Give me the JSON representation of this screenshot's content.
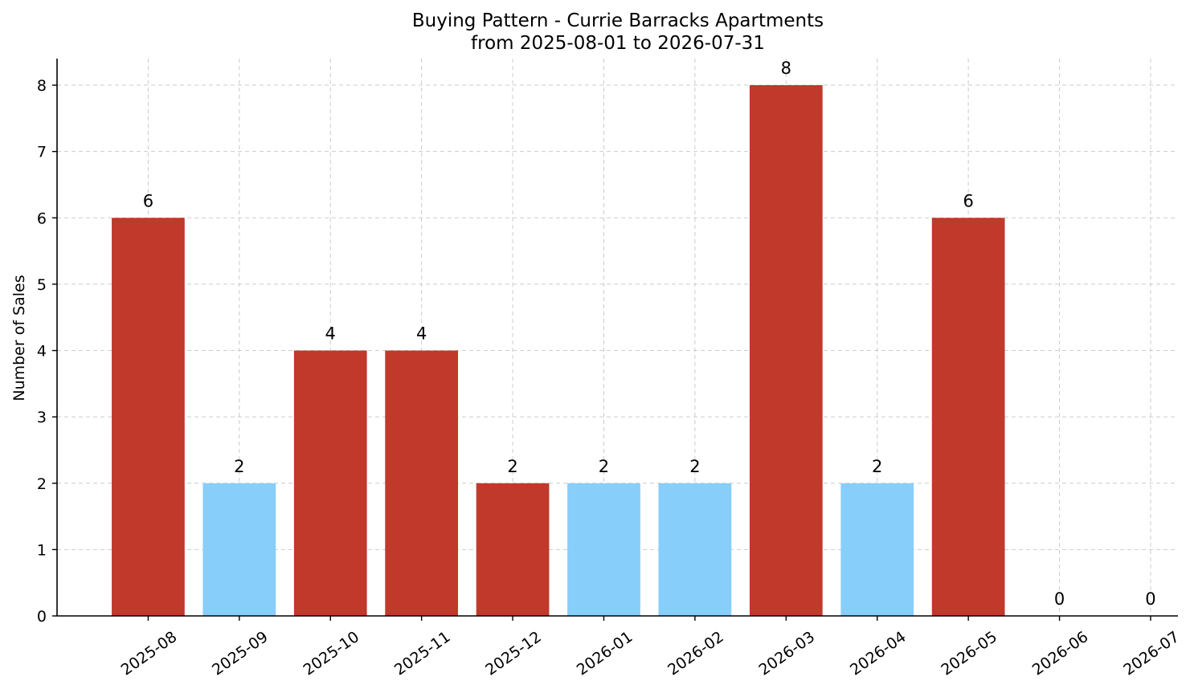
{
  "chart_data": {
    "type": "bar",
    "title_line1": "Buying Pattern - Currie Barracks Apartments",
    "title_line2": "from 2025-08-01 to 2026-07-31",
    "xlabel": "",
    "ylabel": "Number of Sales",
    "categories": [
      "2025-08",
      "2025-09",
      "2025-10",
      "2025-11",
      "2025-12",
      "2026-01",
      "2026-02",
      "2026-03",
      "2026-04",
      "2026-05",
      "2026-06",
      "2026-07"
    ],
    "values": [
      6,
      2,
      4,
      4,
      2,
      2,
      2,
      8,
      2,
      6,
      0,
      0
    ],
    "bar_colors": [
      "#c0392b",
      "#87cefa",
      "#c0392b",
      "#c0392b",
      "#c0392b",
      "#87cefa",
      "#87cefa",
      "#c0392b",
      "#87cefa",
      "#c0392b",
      "#c0392b",
      "#c0392b"
    ],
    "ylim": [
      0,
      8.4
    ],
    "yticks": [
      0,
      1,
      2,
      3,
      4,
      5,
      6,
      7,
      8
    ],
    "grid": true,
    "data_labels": true
  }
}
